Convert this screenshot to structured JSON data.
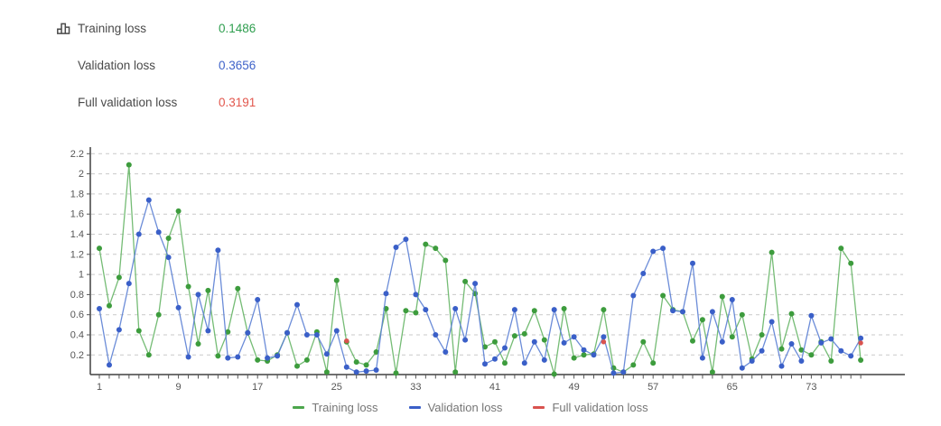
{
  "header": {
    "icon": "bar-chart-icon",
    "rows": [
      {
        "label": "Training loss",
        "value": "0.1486",
        "color": "#2f9e4f"
      },
      {
        "label": "Validation loss",
        "value": "0.3656",
        "color": "#3f63c9"
      },
      {
        "label": "Full validation loss",
        "value": "0.3191",
        "color": "#e2574d"
      }
    ]
  },
  "legend": {
    "items": [
      {
        "label": "Training loss",
        "color": "#4ca64c"
      },
      {
        "label": "Validation loss",
        "color": "#3a5fc8"
      },
      {
        "label": "Full validation loss",
        "color": "#d9534f"
      }
    ]
  },
  "chart_data": {
    "type": "line",
    "title": "",
    "xlabel": "",
    "ylabel": "",
    "x_start": 1,
    "x_end": 78,
    "ylim": [
      0,
      2.3
    ],
    "grid": "horizontal-dashed",
    "legend_position": "bottom",
    "y_ticks": [
      "0.2",
      "0.4",
      "0.6",
      "0.8",
      "1",
      "1.2",
      "1.4",
      "1.6",
      "1.8",
      "2",
      "2.2"
    ],
    "y_tick_values": [
      0.2,
      0.4,
      0.6,
      0.8,
      1.0,
      1.2,
      1.4,
      1.6,
      1.8,
      2.0,
      2.2
    ],
    "x_tick_labels": [
      1,
      9,
      17,
      25,
      33,
      41,
      49,
      57,
      65,
      73
    ],
    "series": [
      {
        "name": "Training loss",
        "dot_color": "#3d9c3d",
        "line_color": "#66b566",
        "values": [
          1.26,
          0.69,
          0.97,
          2.09,
          0.44,
          0.2,
          0.6,
          1.36,
          1.63,
          0.88,
          0.31,
          0.84,
          0.19,
          0.43,
          0.86,
          0.42,
          0.15,
          0.14,
          0.2,
          0.42,
          0.09,
          0.15,
          0.43,
          0.03,
          0.94,
          0.33,
          0.13,
          0.1,
          0.23,
          0.66,
          0.02,
          0.64,
          0.62,
          1.3,
          1.26,
          1.14,
          0.03,
          0.93,
          0.81,
          0.28,
          0.33,
          0.12,
          0.39,
          0.41,
          0.64,
          0.35,
          0.01,
          0.66,
          0.17,
          0.2,
          0.21,
          0.65,
          0.07,
          0.03,
          0.1,
          0.33,
          0.12,
          0.79,
          0.65,
          0.63,
          0.34,
          0.55,
          0.03,
          0.78,
          0.38,
          0.6,
          0.16,
          0.4,
          1.22,
          0.26,
          0.61,
          0.25,
          0.2,
          0.33,
          0.14,
          1.26,
          1.11,
          0.1486
        ]
      },
      {
        "name": "Validation loss",
        "dot_color": "#3a5fc8",
        "line_color": "#5b7fd4",
        "values": [
          0.66,
          0.1,
          0.45,
          0.91,
          1.4,
          1.74,
          1.42,
          1.17,
          0.67,
          0.18,
          0.8,
          0.44,
          1.24,
          0.17,
          0.18,
          0.42,
          0.75,
          0.17,
          0.19,
          0.42,
          0.7,
          0.4,
          0.4,
          0.21,
          0.44,
          0.08,
          0.03,
          0.04,
          0.05,
          0.81,
          1.27,
          1.35,
          0.8,
          0.65,
          0.4,
          0.23,
          0.66,
          0.35,
          0.91,
          0.11,
          0.16,
          0.27,
          0.65,
          0.12,
          0.33,
          0.15,
          0.65,
          0.32,
          0.38,
          0.25,
          0.2,
          0.38,
          0.02,
          0.03,
          0.79,
          1.01,
          1.23,
          1.26,
          0.64,
          0.63,
          1.11,
          0.17,
          0.63,
          0.33,
          0.75,
          0.07,
          0.14,
          0.24,
          0.53,
          0.09,
          0.31,
          0.14,
          0.59,
          0.32,
          0.36,
          0.24,
          0.19,
          0.3656
        ]
      },
      {
        "name": "Full validation loss",
        "dot_color": "#d9534f",
        "line_color": "#d9534f",
        "points": [
          {
            "x": 26,
            "y": 0.34
          },
          {
            "x": 52,
            "y": 0.33
          },
          {
            "x": 78,
            "y": 0.3191
          }
        ]
      }
    ]
  }
}
